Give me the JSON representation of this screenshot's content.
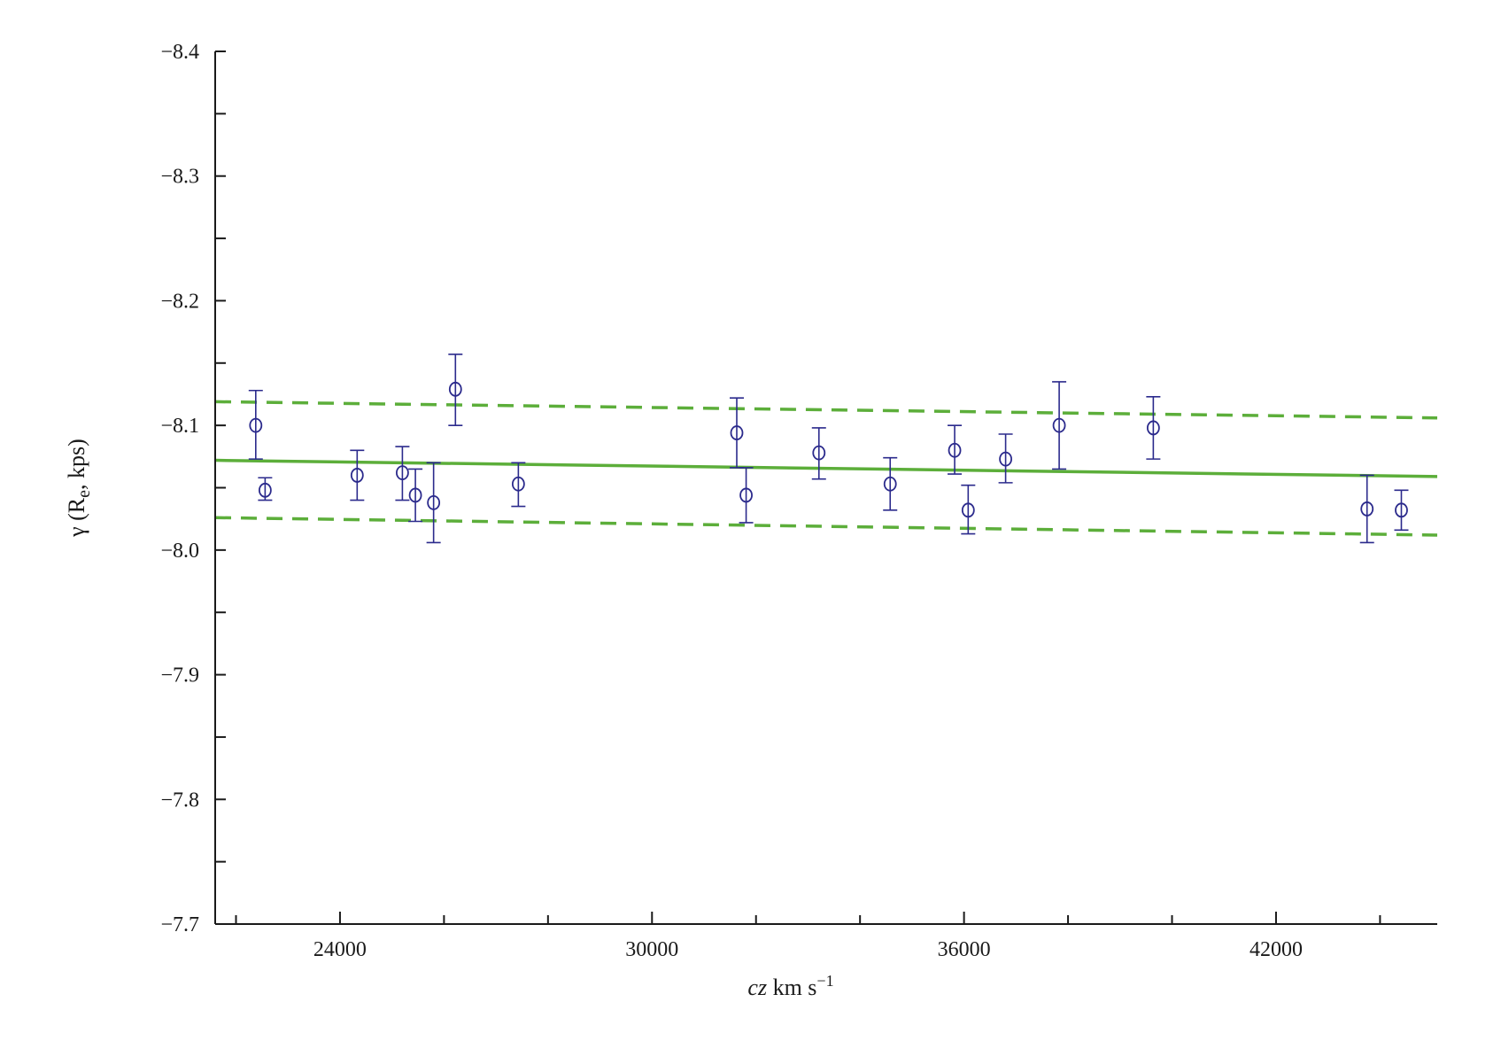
{
  "chart_data": {
    "type": "scatter",
    "title": "",
    "xlabel_italic": "cz",
    "xlabel_rest": " km s",
    "xlabel_sup": "−1",
    "ylabel_main": "γ (R",
    "ylabel_sub": "e",
    "ylabel_tail": ", kps)",
    "xlim": [
      21600,
      45100
    ],
    "ylim": [
      -8.4,
      -7.7
    ],
    "y_reversed": true,
    "x_major_ticks": [
      24000,
      30000,
      36000,
      42000
    ],
    "x_tick_labels": [
      "24000",
      "30000",
      "36000",
      "42000"
    ],
    "x_minor_ticks": [
      22000,
      26000,
      28000,
      32000,
      34000,
      38000,
      40000,
      44000
    ],
    "y_ticks": [
      -8.4,
      -8.35,
      -8.3,
      -8.25,
      -8.2,
      -8.15,
      -8.1,
      -8.05,
      -8.0,
      -7.95,
      -7.9,
      -7.85,
      -7.8,
      -7.75,
      -7.7
    ],
    "y_tick_labels": [
      {
        "value": -8.4,
        "label": "−8.4"
      },
      {
        "value": -8.3,
        "label": "−8.3"
      },
      {
        "value": -8.2,
        "label": "−8.2"
      },
      {
        "value": -8.1,
        "label": "−8.1"
      },
      {
        "value": -8.0,
        "label": "−8.0"
      },
      {
        "value": -7.9,
        "label": "−7.9"
      },
      {
        "value": -7.8,
        "label": "−7.8"
      },
      {
        "value": -7.7,
        "label": "−7.7"
      }
    ],
    "points": [
      {
        "x": 22380,
        "y": -8.1,
        "lo": -8.128,
        "hi": -8.073
      },
      {
        "x": 22560,
        "y": -8.048,
        "lo": -8.058,
        "hi": -8.04
      },
      {
        "x": 24330,
        "y": -8.06,
        "lo": -8.08,
        "hi": -8.04
      },
      {
        "x": 25200,
        "y": -8.062,
        "lo": -8.083,
        "hi": -8.04
      },
      {
        "x": 25450,
        "y": -8.044,
        "lo": -8.065,
        "hi": -8.023
      },
      {
        "x": 25800,
        "y": -8.038,
        "lo": -8.07,
        "hi": -8.006
      },
      {
        "x": 26220,
        "y": -8.129,
        "lo": -8.157,
        "hi": -8.1
      },
      {
        "x": 27430,
        "y": -8.053,
        "lo": -8.07,
        "hi": -8.035
      },
      {
        "x": 31630,
        "y": -8.094,
        "lo": -8.122,
        "hi": -8.066
      },
      {
        "x": 31810,
        "y": -8.044,
        "lo": -8.066,
        "hi": -8.022
      },
      {
        "x": 33210,
        "y": -8.078,
        "lo": -8.098,
        "hi": -8.057
      },
      {
        "x": 34580,
        "y": -8.053,
        "lo": -8.074,
        "hi": -8.032
      },
      {
        "x": 35820,
        "y": -8.08,
        "lo": -8.1,
        "hi": -8.061
      },
      {
        "x": 36080,
        "y": -8.032,
        "lo": -8.052,
        "hi": -8.013
      },
      {
        "x": 36800,
        "y": -8.073,
        "lo": -8.093,
        "hi": -8.054
      },
      {
        "x": 37830,
        "y": -8.1,
        "lo": -8.135,
        "hi": -8.065
      },
      {
        "x": 39640,
        "y": -8.098,
        "lo": -8.123,
        "hi": -8.073
      },
      {
        "x": 43750,
        "y": -8.033,
        "lo": -8.06,
        "hi": -8.006
      },
      {
        "x": 44410,
        "y": -8.032,
        "lo": -8.048,
        "hi": -8.016
      }
    ],
    "fit_line": {
      "x": [
        21600,
        45100
      ],
      "y": [
        -8.072,
        -8.059
      ]
    },
    "band_upper": {
      "x": [
        21600,
        45100
      ],
      "y": [
        -8.119,
        -8.106
      ]
    },
    "band_lower": {
      "x": [
        21600,
        45100
      ],
      "y": [
        -8.026,
        -8.012
      ]
    },
    "colors": {
      "points": "#2b2a8c",
      "fit": "#5cae3a"
    }
  }
}
